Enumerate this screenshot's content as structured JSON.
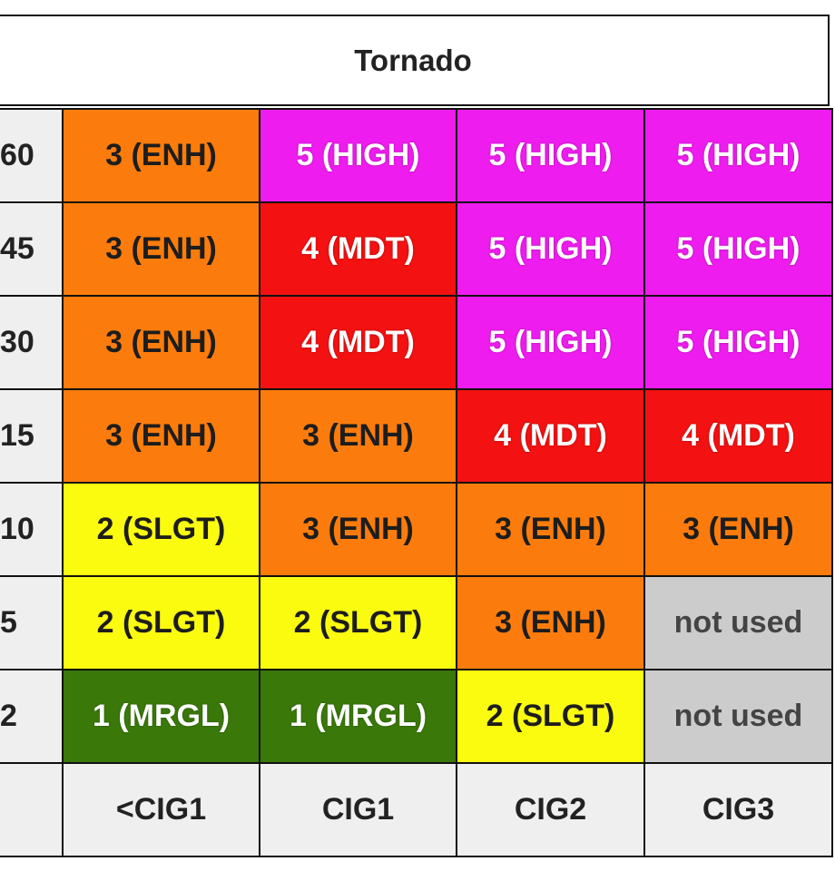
{
  "title": "Tornado",
  "colors": {
    "ENH": "#fb7c0c",
    "HIGH": "#ee1cee",
    "MDT": "#f31111",
    "SLGT": "#fbfb10",
    "MRGL": "#3a780a",
    "unused": "#cccccc",
    "label_bg": "#efefef"
  },
  "columns": [
    "<CIG1",
    "CIG1",
    "CIG2",
    "CIG3"
  ],
  "rows": [
    {
      "label": "60",
      "cells": [
        {
          "text": "3 (ENH)",
          "cat": "enh"
        },
        {
          "text": "5 (HIGH)",
          "cat": "high"
        },
        {
          "text": "5 (HIGH)",
          "cat": "high"
        },
        {
          "text": "5 (HIGH)",
          "cat": "high"
        }
      ]
    },
    {
      "label": "45",
      "cells": [
        {
          "text": "3 (ENH)",
          "cat": "enh"
        },
        {
          "text": "4 (MDT)",
          "cat": "mdt"
        },
        {
          "text": "5 (HIGH)",
          "cat": "high"
        },
        {
          "text": "5 (HIGH)",
          "cat": "high"
        }
      ]
    },
    {
      "label": "30",
      "cells": [
        {
          "text": "3 (ENH)",
          "cat": "enh"
        },
        {
          "text": "4 (MDT)",
          "cat": "mdt"
        },
        {
          "text": "5 (HIGH)",
          "cat": "high"
        },
        {
          "text": "5 (HIGH)",
          "cat": "high"
        }
      ]
    },
    {
      "label": "15",
      "cells": [
        {
          "text": "3 (ENH)",
          "cat": "enh"
        },
        {
          "text": "3 (ENH)",
          "cat": "enh"
        },
        {
          "text": "4 (MDT)",
          "cat": "mdt"
        },
        {
          "text": "4 (MDT)",
          "cat": "mdt"
        }
      ]
    },
    {
      "label": "10",
      "cells": [
        {
          "text": "2 (SLGT)",
          "cat": "slgt"
        },
        {
          "text": "3 (ENH)",
          "cat": "enh"
        },
        {
          "text": "3 (ENH)",
          "cat": "enh"
        },
        {
          "text": "3 (ENH)",
          "cat": "enh"
        }
      ]
    },
    {
      "label": "5",
      "cells": [
        {
          "text": "2 (SLGT)",
          "cat": "slgt"
        },
        {
          "text": "2 (SLGT)",
          "cat": "slgt"
        },
        {
          "text": "3 (ENH)",
          "cat": "enh"
        },
        {
          "text": "not used",
          "cat": "unused"
        }
      ]
    },
    {
      "label": "2",
      "cells": [
        {
          "text": "1 (MRGL)",
          "cat": "mrgl"
        },
        {
          "text": "1 (MRGL)",
          "cat": "mrgl"
        },
        {
          "text": "2 (SLGT)",
          "cat": "slgt"
        },
        {
          "text": "not used",
          "cat": "unused"
        }
      ]
    }
  ]
}
